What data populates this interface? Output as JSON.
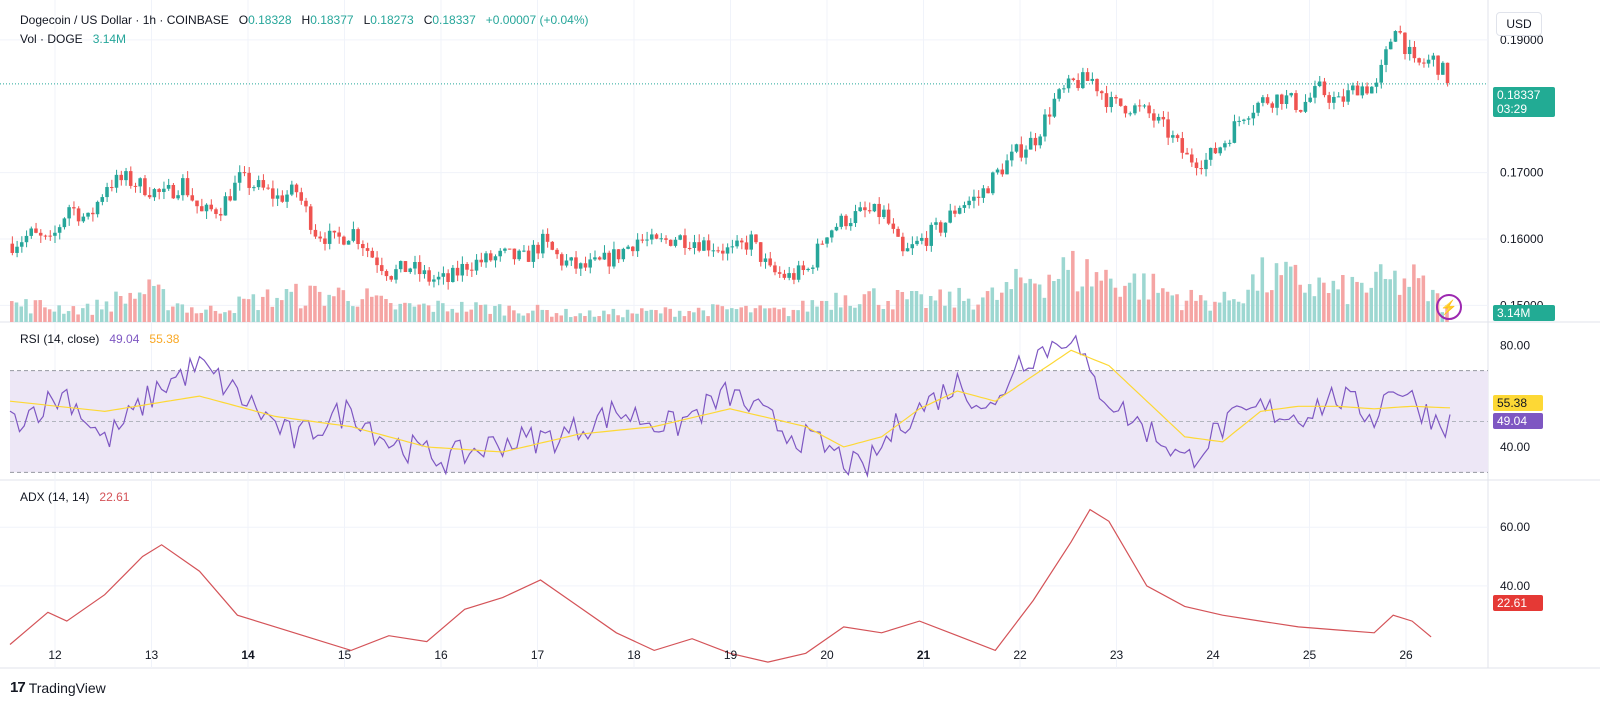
{
  "header": {
    "symbol": "Dogecoin / US Dollar · 1h · COINBASE",
    "o_label": "O",
    "o_value": "0.18328",
    "h_label": "H",
    "h_value": "0.18377",
    "l_label": "L",
    "l_value": "0.18273",
    "c_label": "C",
    "c_value": "0.18337",
    "change": "+0.00007 (+0.04%)",
    "vol_label": "Vol · DOGE",
    "vol_value": "3.14M"
  },
  "currency_button": "USD",
  "last_price_tag": {
    "price": "0.18337",
    "countdown": "03:29"
  },
  "volume_tag": "3.14M",
  "rsi": {
    "label": "RSI (14, close)",
    "value": "49.04",
    "ma_value": "55.38"
  },
  "adx": {
    "label": "ADX (14, 14)",
    "value": "22.61"
  },
  "branding": "TradingView",
  "colors": {
    "up": "#26a69a",
    "down": "#ef5350",
    "vol_up": "#9dd7d1",
    "vol_down": "#f5a5a4",
    "rsi_line": "#7e57c2",
    "rsi_ma": "#fdd835",
    "rsi_band": "#ede7f6",
    "adx_line": "#d45358"
  },
  "chart_data": {
    "type": "candlestick",
    "x_ticks": [
      "12",
      "13",
      "14",
      "15",
      "16",
      "17",
      "18",
      "19",
      "20",
      "21",
      "22",
      "23",
      "24",
      "25",
      "26"
    ],
    "price_axis": {
      "ticks": [
        "0.19000",
        "0.17000",
        "0.16000",
        "0.15000"
      ],
      "range": [
        0.1475,
        0.1945
      ]
    },
    "price_path": [
      [
        0,
        0.1593
      ],
      [
        1,
        0.1607
      ],
      [
        2,
        0.1593
      ],
      [
        3,
        0.165
      ],
      [
        4,
        0.1628
      ],
      [
        5,
        0.1683
      ],
      [
        6,
        0.169
      ],
      [
        7,
        0.1678
      ],
      [
        8,
        0.1665
      ],
      [
        9,
        0.1685
      ],
      [
        10,
        0.1638
      ],
      [
        11,
        0.1648
      ],
      [
        12,
        0.169
      ],
      [
        13,
        0.1678
      ],
      [
        14,
        0.1662
      ],
      [
        15,
        0.1672
      ],
      [
        16,
        0.1612
      ],
      [
        17,
        0.1597
      ],
      [
        18,
        0.1612
      ],
      [
        19,
        0.1575
      ],
      [
        20,
        0.1548
      ],
      [
        21,
        0.1558
      ],
      [
        22,
        0.154
      ],
      [
        23,
        0.1537
      ],
      [
        24,
        0.1562
      ],
      [
        25,
        0.1568
      ],
      [
        26,
        0.1575
      ],
      [
        27,
        0.157
      ],
      [
        28,
        0.1595
      ],
      [
        29,
        0.1567
      ],
      [
        30,
        0.1555
      ],
      [
        31,
        0.1563
      ],
      [
        32,
        0.1578
      ],
      [
        33,
        0.16
      ],
      [
        34,
        0.1592
      ],
      [
        35,
        0.1603
      ],
      [
        36,
        0.1598
      ],
      [
        37,
        0.159
      ],
      [
        38,
        0.158
      ],
      [
        39,
        0.1598
      ],
      [
        40,
        0.155
      ],
      [
        41,
        0.1543
      ],
      [
        42,
        0.1553
      ],
      [
        43,
        0.1612
      ],
      [
        44,
        0.163
      ],
      [
        45,
        0.164
      ],
      [
        46,
        0.1638
      ],
      [
        47,
        0.1575
      ],
      [
        48,
        0.1598
      ],
      [
        49,
        0.1618
      ],
      [
        50,
        0.1652
      ],
      [
        51,
        0.1663
      ],
      [
        52,
        0.17
      ],
      [
        53,
        0.173
      ],
      [
        54,
        0.1752
      ],
      [
        55,
        0.1808
      ],
      [
        56,
        0.1835
      ],
      [
        57,
        0.184
      ],
      [
        58,
        0.1803
      ],
      [
        59,
        0.18
      ],
      [
        60,
        0.1788
      ],
      [
        61,
        0.176
      ],
      [
        62,
        0.1722
      ],
      [
        63,
        0.1718
      ],
      [
        64,
        0.1748
      ],
      [
        65,
        0.179
      ],
      [
        66,
        0.1808
      ],
      [
        67,
        0.1815
      ],
      [
        68,
        0.18
      ],
      [
        69,
        0.1825
      ],
      [
        70,
        0.1805
      ],
      [
        71,
        0.183
      ],
      [
        72,
        0.1828
      ],
      [
        73,
        0.1925
      ],
      [
        74,
        0.186
      ],
      [
        75,
        0.187
      ],
      [
        76,
        0.1834
      ]
    ],
    "volume_path": [
      [
        0,
        0.35
      ],
      [
        4,
        0.25
      ],
      [
        7,
        0.6
      ],
      [
        10,
        0.2
      ],
      [
        14,
        0.5
      ],
      [
        18,
        0.55
      ],
      [
        20,
        0.3
      ],
      [
        23,
        0.3
      ],
      [
        27,
        0.25
      ],
      [
        30,
        0.15
      ],
      [
        34,
        0.2
      ],
      [
        38,
        0.25
      ],
      [
        41,
        0.2
      ],
      [
        44,
        0.55
      ],
      [
        48,
        0.4
      ],
      [
        52,
        0.5
      ],
      [
        54,
        0.9
      ],
      [
        56,
        1.0
      ],
      [
        58,
        0.85
      ],
      [
        60,
        0.7
      ],
      [
        62,
        0.45
      ],
      [
        64,
        0.4
      ],
      [
        66,
        0.85
      ],
      [
        68,
        0.8
      ],
      [
        70,
        0.6
      ],
      [
        72,
        0.75
      ],
      [
        74,
        0.8
      ],
      [
        76,
        0.2
      ]
    ],
    "rsi_axis": {
      "ticks": [
        "80.00",
        "40.00"
      ],
      "upper_band": 70,
      "lower_band": 30,
      "range": [
        27,
        86
      ]
    },
    "rsi_path": [
      [
        0,
        50
      ],
      [
        3,
        61
      ],
      [
        5,
        42
      ],
      [
        8,
        64
      ],
      [
        10,
        72
      ],
      [
        13,
        55
      ],
      [
        15,
        43
      ],
      [
        18,
        55
      ],
      [
        20,
        42
      ],
      [
        23,
        35
      ],
      [
        26,
        42
      ],
      [
        29,
        44
      ],
      [
        32,
        54
      ],
      [
        35,
        48
      ],
      [
        38,
        61
      ],
      [
        41,
        46
      ],
      [
        43,
        40
      ],
      [
        45,
        30
      ],
      [
        47,
        50
      ],
      [
        48,
        55
      ],
      [
        50,
        65
      ],
      [
        52,
        54
      ],
      [
        53,
        73
      ],
      [
        55,
        80
      ],
      [
        56,
        85
      ],
      [
        57,
        67
      ],
      [
        58,
        59
      ],
      [
        59,
        52
      ],
      [
        61,
        42
      ],
      [
        62,
        34
      ],
      [
        64,
        48
      ],
      [
        66,
        55
      ],
      [
        68,
        52
      ],
      [
        70,
        60
      ],
      [
        72,
        52
      ],
      [
        73,
        65
      ],
      [
        75,
        52
      ],
      [
        76,
        49.04
      ]
    ],
    "rsi_ma_path": [
      [
        0,
        58
      ],
      [
        5,
        54
      ],
      [
        10,
        60
      ],
      [
        14,
        52
      ],
      [
        18,
        48
      ],
      [
        22,
        40
      ],
      [
        26,
        38
      ],
      [
        30,
        45
      ],
      [
        34,
        48
      ],
      [
        38,
        55
      ],
      [
        42,
        48
      ],
      [
        44,
        40
      ],
      [
        46,
        44
      ],
      [
        48,
        55
      ],
      [
        50,
        62
      ],
      [
        52,
        58
      ],
      [
        54,
        68
      ],
      [
        56,
        78
      ],
      [
        58,
        72
      ],
      [
        60,
        58
      ],
      [
        62,
        44
      ],
      [
        64,
        42
      ],
      [
        66,
        54
      ],
      [
        68,
        56
      ],
      [
        70,
        56
      ],
      [
        72,
        55
      ],
      [
        74,
        56
      ],
      [
        76,
        55.38
      ]
    ],
    "adx_axis": {
      "ticks": [
        "60.00",
        "40.00"
      ],
      "range": [
        12,
        72
      ]
    },
    "adx_path": [
      [
        0,
        20
      ],
      [
        2,
        31
      ],
      [
        3,
        28
      ],
      [
        5,
        37
      ],
      [
        7,
        50
      ],
      [
        8,
        54
      ],
      [
        10,
        45
      ],
      [
        12,
        30
      ],
      [
        14,
        26
      ],
      [
        16,
        22
      ],
      [
        18,
        18
      ],
      [
        20,
        23
      ],
      [
        22,
        21
      ],
      [
        24,
        32
      ],
      [
        26,
        36
      ],
      [
        28,
        42
      ],
      [
        30,
        33
      ],
      [
        32,
        24
      ],
      [
        34,
        18
      ],
      [
        36,
        22
      ],
      [
        38,
        17
      ],
      [
        40,
        14
      ],
      [
        42,
        17
      ],
      [
        44,
        26
      ],
      [
        46,
        24
      ],
      [
        48,
        28
      ],
      [
        50,
        23
      ],
      [
        52,
        18
      ],
      [
        54,
        35
      ],
      [
        56,
        55
      ],
      [
        57,
        66
      ],
      [
        58,
        62
      ],
      [
        60,
        40
      ],
      [
        62,
        33
      ],
      [
        64,
        30
      ],
      [
        66,
        28
      ],
      [
        68,
        26
      ],
      [
        70,
        25
      ],
      [
        72,
        24
      ],
      [
        73,
        30
      ],
      [
        74,
        28
      ],
      [
        75,
        22.61
      ]
    ]
  }
}
